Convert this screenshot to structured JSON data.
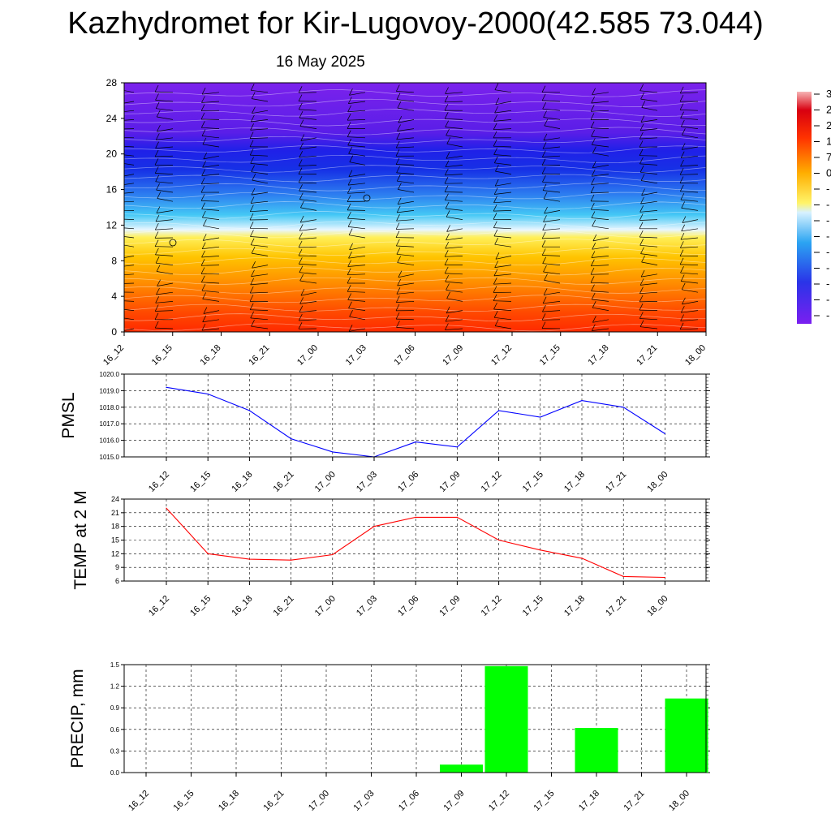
{
  "header": {
    "title": "Kazhydromet for Kir-Lugovoy-2000(42.585 73.044)",
    "date": "16 May 2025"
  },
  "chart_data": [
    {
      "type": "heatmap",
      "name": "vertical-cross-section",
      "x_tick_labels": [
        "16_12",
        "16_15",
        "16_18",
        "16_21",
        "17_00",
        "17_03",
        "17_06",
        "17_09",
        "17_12",
        "17_15",
        "17_18",
        "17_21",
        "18_00"
      ],
      "y_ticks": [
        0,
        4,
        8,
        12,
        16,
        20,
        24,
        28
      ],
      "ylim": [
        0,
        28
      ],
      "colorbar_labels": [
        "3",
        "2",
        "2",
        "1",
        "7",
        "0",
        "-",
        "-",
        "-",
        "-",
        "-",
        "-",
        "-",
        "-",
        "-"
      ],
      "colors": {
        "purple": "#7b1fe8",
        "blue": "#1b1fe8",
        "cyan": "#22b8f0",
        "yellow": "#ffe94d",
        "orange": "#ff8c00",
        "red": "#ff2b00"
      }
    },
    {
      "type": "line",
      "name": "pmsl",
      "ylabel": "PMSL",
      "categories": [
        "16_12",
        "16_15",
        "16_18",
        "16_21",
        "17_00",
        "17_03",
        "17_06",
        "17_09",
        "17_12",
        "17_15",
        "17_18",
        "17_21",
        "18_00"
      ],
      "values": [
        1019.2,
        1018.8,
        1017.8,
        1016.1,
        1015.3,
        1015.0,
        1015.9,
        1015.6,
        1017.8,
        1017.4,
        1018.4,
        1018.0,
        1016.4
      ],
      "ylim": [
        1015.0,
        1020.0
      ],
      "y_ticks": [
        "1015.0",
        "1016.0",
        "1017.0",
        "1018.0",
        "1019.0",
        "1020.0"
      ],
      "color": "#0000ff"
    },
    {
      "type": "line",
      "name": "temp-2m",
      "ylabel": "TEMP at 2 M",
      "categories": [
        "16_12",
        "16_15",
        "16_18",
        "16_21",
        "17_00",
        "17_03",
        "17_06",
        "17_09",
        "17_12",
        "17_15",
        "17_18",
        "17_21",
        "18_00"
      ],
      "values": [
        22.0,
        12.0,
        10.8,
        10.6,
        11.8,
        18.0,
        20.0,
        20.0,
        15.0,
        12.8,
        11.0,
        7.0,
        6.8
      ],
      "ylim": [
        6,
        24
      ],
      "y_ticks": [
        "6",
        "9",
        "12",
        "15",
        "18",
        "21",
        "24"
      ],
      "color": "#ff0000"
    },
    {
      "type": "bar",
      "name": "precip",
      "ylabel": "PRECIP, mm",
      "categories": [
        "16_12",
        "16_15",
        "16_18",
        "16_21",
        "17_00",
        "17_03",
        "17_06",
        "17_09",
        "17_12",
        "17_15",
        "17_18",
        "17_21",
        "18_00"
      ],
      "values": [
        0,
        0,
        0,
        0,
        0,
        0,
        0,
        0.11,
        1.48,
        0,
        0.62,
        0,
        1.03
      ],
      "ylim": [
        0,
        1.5
      ],
      "y_ticks": [
        "0.0",
        "0.3",
        "0.6",
        "0.9",
        "1.2",
        "1.5"
      ],
      "color": "#00ff00"
    }
  ]
}
